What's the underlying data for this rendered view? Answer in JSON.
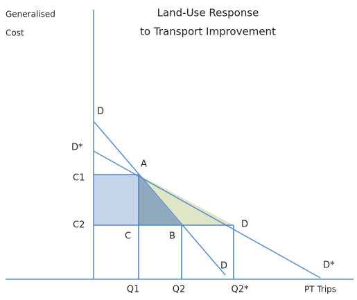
{
  "title": [
    "Land-Use Response",
    "to Transport Improvement"
  ],
  "y_axis_label": [
    "Generalised",
    "Cost"
  ],
  "x_axis_label": "PT Trips",
  "price_axis_labels": [
    "D",
    "D*",
    "C1",
    "C2"
  ],
  "quantity_axis_labels": [
    "Q1",
    "Q2",
    "Q2*"
  ],
  "point_labels": [
    "A",
    "C",
    "B",
    "D"
  ],
  "curve_end_labels": [
    "D",
    "D*"
  ]
}
